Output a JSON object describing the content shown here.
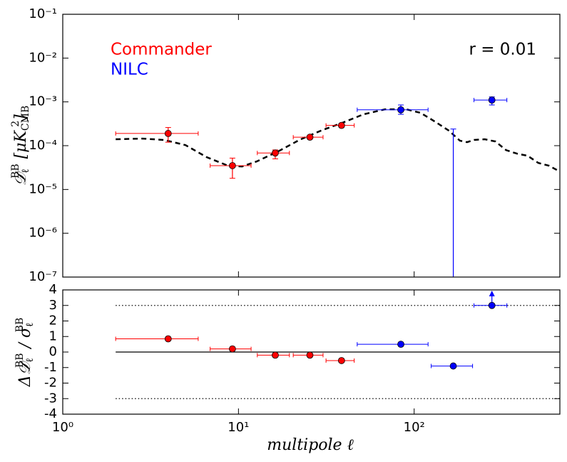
{
  "chart_data": [
    {
      "type": "errorbar",
      "xscale": "log",
      "yscale": "log",
      "xlim": [
        1,
        675
      ],
      "ylim": [
        1e-07,
        0.1
      ],
      "yticks": [
        {
          "value": 1e-07,
          "label": "10⁻⁷"
        },
        {
          "value": 1e-06,
          "label": "10⁻⁶"
        },
        {
          "value": 1e-05,
          "label": "10⁻⁵"
        },
        {
          "value": 0.0001,
          "label": "10⁻⁴"
        },
        {
          "value": 0.001,
          "label": "10⁻³"
        },
        {
          "value": 0.01,
          "label": "10⁻²"
        },
        {
          "value": 0.1,
          "label": "10⁻¹"
        }
      ],
      "ylabel": [
        "𝒟",
        "ℓ",
        "BB",
        " [μK",
        "CMB",
        "2",
        "]"
      ],
      "annotation": "r = 0.01",
      "series": [
        {
          "name": "Commander",
          "color": "#ff0000",
          "x": [
            3.98,
            9.24,
            16.2,
            25.5,
            38.6
          ],
          "x_low": [
            2,
            6.9,
            12.8,
            20.5,
            31.5
          ],
          "x_high": [
            5.9,
            11.8,
            19.5,
            30.3,
            45.6
          ],
          "values": [
            0.00019,
            3.5e-05,
            6.8e-05,
            0.000156,
            0.00029
          ],
          "y_low": [
            0.00012,
            1.8e-05,
            5e-05,
            0.000145,
            0.000265
          ],
          "y_high": [
            0.00026,
            5.2e-05,
            8e-05,
            0.00017,
            0.00032
          ]
        },
        {
          "name": "NILC",
          "color": "#0000ff",
          "x": [
            84,
            167,
            277
          ],
          "x_low": [
            47.4,
            null,
            219
          ],
          "x_high": [
            120,
            null,
            337
          ],
          "values": [
            0.00066,
            null,
            0.0011
          ],
          "y_low": [
            0.00052,
            null,
            0.00085
          ],
          "y_high": [
            0.00085,
            0.00024,
            0.0013
          ]
        }
      ],
      "model": {
        "color": "#000000",
        "x": [
          2,
          2.85,
          3.77,
          4.99,
          6.6,
          8.73,
          10.5,
          12.7,
          16.8,
          22.2,
          29.4,
          38.9,
          51.5,
          68.2,
          90.2,
          109,
          131,
          158,
          182,
          200,
          219,
          252,
          290,
          334,
          384,
          442,
          508,
          585,
          673
        ],
        "values": [
          0.00014,
          0.000145,
          0.000135,
          0.000103,
          5.46e-05,
          3.48e-05,
          3.35e-05,
          4.36e-05,
          7.38e-05,
          0.000135,
          0.000219,
          0.000331,
          0.00052,
          0.000676,
          0.000676,
          0.00056,
          0.000357,
          0.000219,
          0.00013,
          0.00012,
          0.000135,
          0.00014,
          0.000125,
          7.9e-05,
          6.6e-05,
          5.9e-05,
          4.05e-05,
          3.48e-05,
          2.58e-05
        ]
      }
    },
    {
      "type": "errorbar",
      "xscale": "log",
      "xlim": [
        1,
        675
      ],
      "ylim": [
        -4,
        4
      ],
      "xticks": [
        {
          "value": 1,
          "label": "10⁰"
        },
        {
          "value": 10,
          "label": "10¹"
        },
        {
          "value": 100,
          "label": "10²"
        }
      ],
      "yticks": [
        -4,
        -3,
        -2,
        -1,
        0,
        1,
        2,
        3,
        4
      ],
      "xlabel": "multipole ℓ",
      "ylabel": [
        "Δ𝒟",
        "ℓ",
        "BB",
        " / σ",
        "ℓ",
        "BB"
      ],
      "hlines": [
        {
          "value": 0,
          "style": "solid"
        },
        {
          "value": 3,
          "style": "dotted"
        },
        {
          "value": -3,
          "style": "dotted"
        }
      ],
      "hline_start": 2,
      "series": [
        {
          "color": "#ff0000",
          "x": [
            3.98,
            9.24,
            16.2,
            25.5,
            38.6
          ],
          "x_low": [
            2,
            6.9,
            12.8,
            20.5,
            31.5
          ],
          "x_high": [
            5.9,
            11.8,
            19.5,
            30.3,
            45.6
          ],
          "values": [
            0.85,
            0.2,
            -0.2,
            -0.2,
            -0.55
          ],
          "arrow_up": [
            false,
            false,
            false,
            false,
            false
          ]
        },
        {
          "color": "#0000ff",
          "x": [
            84,
            167,
            277
          ],
          "x_low": [
            47.4,
            125,
            219
          ],
          "x_high": [
            120,
            215,
            337
          ],
          "values": [
            0.5,
            -0.9,
            3
          ],
          "arrow_up": [
            false,
            false,
            true
          ]
        }
      ]
    }
  ]
}
